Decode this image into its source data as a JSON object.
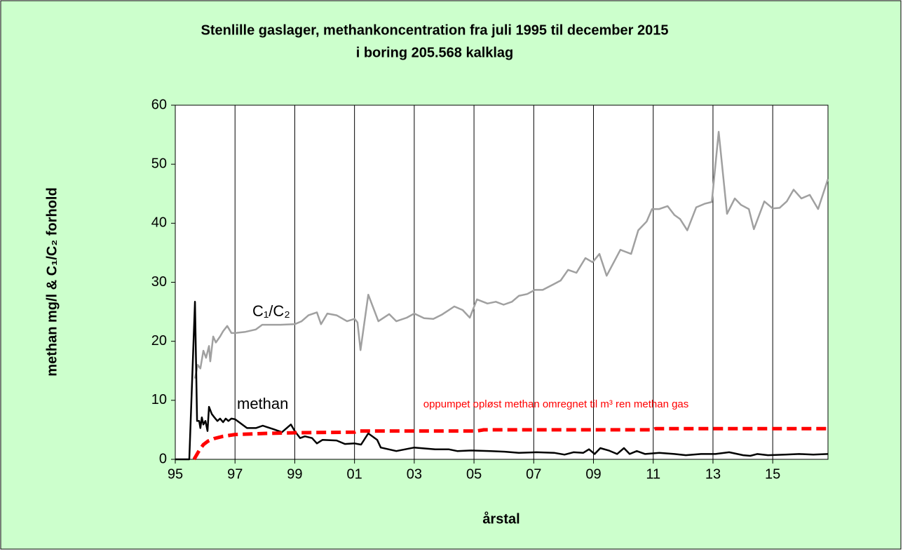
{
  "chart_data": {
    "type": "line",
    "title": [
      "Stenlille  gaslager, methankoncentration fra juli 1995 til december 2015",
      "i boring 205.568 kalklag"
    ],
    "xlabel": "årstal",
    "ylabel": "methan mg/l & C₁/C₂ forhold",
    "xlim": [
      1995,
      2016.85
    ],
    "ylim": [
      0,
      60
    ],
    "xticks": [
      {
        "value": 1995,
        "label": "95"
      },
      {
        "value": 1997,
        "label": "97"
      },
      {
        "value": 1999,
        "label": "99"
      },
      {
        "value": 2001,
        "label": "01"
      },
      {
        "value": 2003,
        "label": "03"
      },
      {
        "value": 2005,
        "label": "05"
      },
      {
        "value": 2007,
        "label": "07"
      },
      {
        "value": 2009,
        "label": "09"
      },
      {
        "value": 2011,
        "label": "11"
      },
      {
        "value": 2013,
        "label": "13"
      },
      {
        "value": 2015,
        "label": "15"
      }
    ],
    "yticks": [
      0,
      10,
      20,
      30,
      40,
      50,
      60
    ],
    "grid": "x",
    "series": [
      {
        "name": "C₁/C₂",
        "color": "#a0a0a0",
        "dash": false,
        "x": [
          1995.66,
          1995.75,
          1995.84,
          1995.94,
          1996.03,
          1996.13,
          1996.17,
          1996.27,
          1996.36,
          1996.5,
          1996.6,
          1996.74,
          1996.88,
          1997.0,
          1997.35,
          1997.7,
          1997.91,
          1998.52,
          1999.0,
          1999.23,
          1999.46,
          1999.74,
          1999.88,
          2000.09,
          2000.4,
          2000.75,
          2001.0,
          2001.1,
          2001.2,
          2001.46,
          2001.8,
          2002.16,
          2002.4,
          2002.75,
          2003.0,
          2003.33,
          2003.64,
          2003.92,
          2004.34,
          2004.62,
          2004.86,
          2005.1,
          2005.45,
          2005.73,
          2005.99,
          2006.27,
          2006.5,
          2006.78,
          2007.04,
          2007.3,
          2007.68,
          2007.9,
          2008.15,
          2008.43,
          2008.73,
          2008.97,
          2009.2,
          2009.44,
          2009.9,
          2010.26,
          2010.5,
          2010.78,
          2010.96,
          2011.2,
          2011.48,
          2011.71,
          2011.9,
          2012.14,
          2012.44,
          2012.72,
          2012.96,
          2013.19,
          2013.47,
          2013.73,
          2013.94,
          2014.2,
          2014.37,
          2014.72,
          2015.0,
          2015.23,
          2015.47,
          2015.7,
          2015.96,
          2016.24,
          2016.52,
          2016.85
        ],
        "values": [
          13.7,
          16,
          15.4,
          18.4,
          17.2,
          19.2,
          16.6,
          20.8,
          19.8,
          20.8,
          21.7,
          22.6,
          21.4,
          21.4,
          21.6,
          22,
          22.8,
          22.8,
          22.9,
          23.4,
          24.4,
          24.9,
          22.9,
          24.7,
          24.4,
          23.4,
          23.8,
          23.2,
          18.5,
          27.9,
          23.4,
          24.6,
          23.4,
          24,
          24.7,
          23.9,
          23.8,
          24.5,
          25.9,
          25.3,
          24,
          27.1,
          26.4,
          26.7,
          26.2,
          26.7,
          27.7,
          28,
          28.7,
          28.7,
          29.7,
          30.3,
          32.1,
          31.6,
          34.1,
          33.4,
          34.8,
          31.1,
          35.5,
          34.8,
          38.8,
          40.3,
          42.4,
          42.4,
          42.9,
          41.4,
          40.7,
          38.8,
          42.7,
          43.3,
          43.6,
          55.5,
          41.6,
          44.2,
          43.1,
          42.4,
          39,
          43.7,
          42.5,
          42.6,
          43.7,
          45.7,
          44.2,
          44.8,
          42.4,
          47.5
        ]
      },
      {
        "name": "methan",
        "color": "#000000",
        "dash": false,
        "x": [
          1995,
          1995.47,
          1995.66,
          1995.73,
          1995.8,
          1995.84,
          1995.89,
          1995.94,
          1996.01,
          1996.08,
          1996.13,
          1996.22,
          1996.31,
          1996.41,
          1996.5,
          1996.6,
          1996.69,
          1996.78,
          1996.88,
          1997.0,
          1997.4,
          1997.7,
          1997.93,
          1998.29,
          1998.57,
          1998.87,
          1999.0,
          1999.18,
          1999.34,
          1999.58,
          1999.74,
          1999.93,
          2000.4,
          2000.68,
          2001.0,
          2001.22,
          2001.46,
          2001.76,
          2001.88,
          2002.4,
          2003.0,
          2003.7,
          2004.15,
          2004.44,
          2004.9,
          2005.56,
          2006.03,
          2006.5,
          2007.09,
          2007.68,
          2008.03,
          2008.33,
          2008.66,
          2008.85,
          2009.04,
          2009.23,
          2009.51,
          2009.79,
          2010.02,
          2010.21,
          2010.45,
          2010.73,
          2011.2,
          2011.71,
          2012.09,
          2012.6,
          2013.08,
          2013.54,
          2014.01,
          2014.25,
          2014.48,
          2014.84,
          2015.42,
          2015.89,
          2016.36,
          2016.85
        ],
        "values": [
          0,
          0,
          26.7,
          6.5,
          6.5,
          5.3,
          7.1,
          5.9,
          6.5,
          4.8,
          8.9,
          7.7,
          7.1,
          6.5,
          6.9,
          6.3,
          6.9,
          6.5,
          6.9,
          6.8,
          5.3,
          5.3,
          5.7,
          5.1,
          4.6,
          5.9,
          4.8,
          3.6,
          3.9,
          3.6,
          2.7,
          3.3,
          3.2,
          2.6,
          2.7,
          2.5,
          4.4,
          3.3,
          2,
          1.4,
          2,
          1.7,
          1.7,
          1.4,
          1.5,
          1.4,
          1.3,
          1.1,
          1.2,
          1.1,
          0.8,
          1.2,
          1.1,
          1.7,
          0.9,
          1.9,
          1.5,
          0.9,
          1.9,
          0.9,
          1.4,
          0.9,
          1.1,
          0.9,
          0.7,
          0.9,
          0.9,
          1.2,
          0.7,
          0.6,
          0.9,
          0.7,
          0.8,
          0.9,
          0.8,
          0.9
        ]
      },
      {
        "name": "oppumpet opløst methan omregnet til m³ ren methan gas",
        "color": "#ff0000",
        "dash": true,
        "x": [
          1995.63,
          1995.8,
          1995.94,
          1996.1,
          1996.29,
          1996.6,
          1997.0,
          1998.05,
          1999.0,
          2001.0,
          2001.1,
          2005.1,
          2005.33,
          2011.0,
          2011.08,
          2016.85
        ],
        "values": [
          0,
          1.5,
          2.5,
          3.1,
          3.5,
          3.9,
          4.2,
          4.4,
          4.5,
          4.6,
          4.8,
          4.8,
          5.0,
          5.0,
          5.2,
          5.2
        ]
      }
    ]
  }
}
